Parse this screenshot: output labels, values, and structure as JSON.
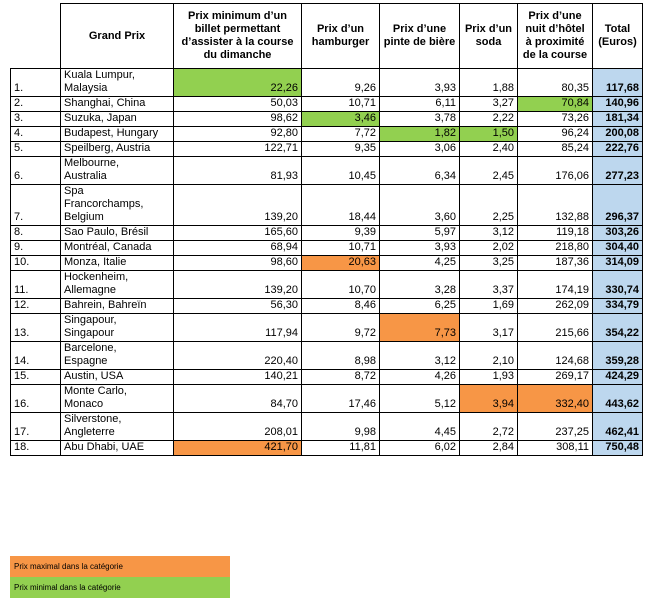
{
  "headers": {
    "rank": "",
    "gp": "Grand Prix",
    "ticket": "Prix minimum d’un billet permettant d’assister à la course du dimanche",
    "burger": "Prix d’un hamburger",
    "beer": "Prix d’une pinte de bière",
    "soda": "Prix d’un soda",
    "hotel": "Prix d’une nuit d’hôtel à proximité de la course",
    "total": "Total (Euros)"
  },
  "rows": [
    {
      "rank": "1.",
      "gp": [
        "Kuala Lumpur,",
        "Malaysia"
      ],
      "ticket": "22,26",
      "burger": "9,26",
      "beer": "3,93",
      "soda": "1,88",
      "hotel": "80,35",
      "total": "117,68",
      "hl": {
        "ticket": "min"
      }
    },
    {
      "rank": "2.",
      "gp": [
        "Shanghai, China"
      ],
      "ticket": "50,03",
      "burger": "10,71",
      "beer": "6,11",
      "soda": "3,27",
      "hotel": "70,84",
      "total": "140,96",
      "hl": {
        "hotel": "min"
      }
    },
    {
      "rank": "3.",
      "gp": [
        "Suzuka, Japan"
      ],
      "ticket": "98,62",
      "burger": "3,46",
      "beer": "3,78",
      "soda": "2,22",
      "hotel": "73,26",
      "total": "181,34",
      "hl": {
        "burger": "min"
      }
    },
    {
      "rank": "4.",
      "gp": [
        "Budapest, Hungary"
      ],
      "ticket": "92,80",
      "burger": "7,72",
      "beer": "1,82",
      "soda": "1,50",
      "hotel": "96,24",
      "total": "200,08",
      "hl": {
        "beer": "min",
        "soda": "min"
      }
    },
    {
      "rank": "5.",
      "gp": [
        "Speilberg, Austria"
      ],
      "ticket": "122,71",
      "burger": "9,35",
      "beer": "3,06",
      "soda": "2,40",
      "hotel": "85,24",
      "total": "222,76",
      "hl": {}
    },
    {
      "rank": "6.",
      "gp": [
        "Melbourne,",
        "Australia"
      ],
      "ticket": "81,93",
      "burger": "10,45",
      "beer": "6,34",
      "soda": "2,45",
      "hotel": "176,06",
      "total": "277,23",
      "hl": {}
    },
    {
      "rank": "7.",
      "gp": [
        "Spa",
        "Francorchamps,",
        "Belgium"
      ],
      "ticket": "139,20",
      "burger": "18,44",
      "beer": "3,60",
      "soda": "2,25",
      "hotel": "132,88",
      "total": "296,37",
      "hl": {}
    },
    {
      "rank": "8.",
      "gp": [
        "Sao Paulo, Brésil"
      ],
      "ticket": "165,60",
      "burger": "9,39",
      "beer": "5,97",
      "soda": "3,12",
      "hotel": "119,18",
      "total": "303,26",
      "hl": {}
    },
    {
      "rank": "9.",
      "gp": [
        "Montréal, Canada"
      ],
      "ticket": "68,94",
      "burger": "10,71",
      "beer": "3,93",
      "soda": "2,02",
      "hotel": "218,80",
      "total": "304,40",
      "hl": {}
    },
    {
      "rank": "10.",
      "gp": [
        "Monza, Italie"
      ],
      "ticket": "98,60",
      "burger": "20,63",
      "beer": "4,25",
      "soda": "3,25",
      "hotel": "187,36",
      "total": "314,09",
      "hl": {
        "burger": "max"
      }
    },
    {
      "rank": "11.",
      "gp": [
        "Hockenheim,",
        "Allemagne"
      ],
      "ticket": "139,20",
      "burger": "10,70",
      "beer": "3,28",
      "soda": "3,37",
      "hotel": "174,19",
      "total": "330,74",
      "hl": {}
    },
    {
      "rank": "12.",
      "gp": [
        "Bahrein, Bahreïn"
      ],
      "ticket": "56,30",
      "burger": "8,46",
      "beer": "6,25",
      "soda": "1,69",
      "hotel": "262,09",
      "total": "334,79",
      "hl": {}
    },
    {
      "rank": "13.",
      "gp": [
        "Singapour,",
        "Singapour"
      ],
      "ticket": "117,94",
      "burger": "9,72",
      "beer": "7,73",
      "soda": "3,17",
      "hotel": "215,66",
      "total": "354,22",
      "hl": {
        "beer": "max"
      }
    },
    {
      "rank": "14.",
      "gp": [
        "Barcelone,",
        "Espagne"
      ],
      "ticket": "220,40",
      "burger": "8,98",
      "beer": "3,12",
      "soda": "2,10",
      "hotel": "124,68",
      "total": "359,28",
      "hl": {}
    },
    {
      "rank": "15.",
      "gp": [
        "Austin, USA"
      ],
      "ticket": "140,21",
      "burger": "8,72",
      "beer": "4,26",
      "soda": "1,93",
      "hotel": "269,17",
      "total": "424,29",
      "hl": {}
    },
    {
      "rank": "16.",
      "gp": [
        "Monte Carlo,",
        "Monaco"
      ],
      "ticket": "84,70",
      "burger": "17,46",
      "beer": "5,12",
      "soda": "3,94",
      "hotel": "332,40",
      "total": "443,62",
      "hl": {
        "soda": "max",
        "hotel": "max"
      }
    },
    {
      "rank": "17.",
      "gp": [
        "Silverstone,",
        "Angleterre"
      ],
      "ticket": "208,01",
      "burger": "9,98",
      "beer": "4,45",
      "soda": "2,72",
      "hotel": "237,25",
      "total": "462,41",
      "hl": {}
    },
    {
      "rank": "18.",
      "gp": [
        "Abu Dhabi, UAE"
      ],
      "ticket": "421,70",
      "burger": "11,81",
      "beer": "6,02",
      "soda": "2,84",
      "hotel": "308,11",
      "total": "750,48",
      "hl": {
        "ticket": "max"
      }
    }
  ],
  "legend": {
    "max_label": "Prix maximal dans la catégorie",
    "min_label": "Prix minimal dans la catégorie"
  },
  "colors": {
    "max": "#f79646",
    "min": "#92d050",
    "total": "#bdd7ee"
  }
}
